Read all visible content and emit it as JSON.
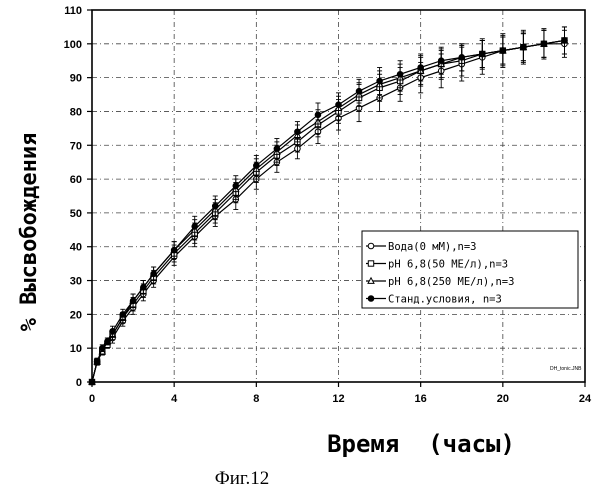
{
  "chart_data": {
    "type": "line",
    "title": "",
    "xlabel": "Время  (часы)",
    "ylabel": "% Высвобождения",
    "xlim": [
      0,
      24
    ],
    "ylim": [
      0,
      110
    ],
    "xticks": [
      0,
      4,
      8,
      12,
      16,
      20,
      24
    ],
    "yticks": [
      0,
      10,
      20,
      30,
      40,
      50,
      60,
      70,
      80,
      90,
      100,
      110
    ],
    "grid": true,
    "legend_position": "lower-right",
    "x": [
      0,
      0.25,
      0.5,
      0.75,
      1,
      1.5,
      2,
      2.5,
      3,
      4,
      5,
      6,
      7,
      8,
      9,
      10,
      11,
      12,
      13,
      14,
      15,
      16,
      17,
      18,
      19,
      20,
      21,
      22,
      23
    ],
    "series": [
      {
        "name": "Вода(0 мМ),n=3",
        "marker": "open-circle",
        "values": [
          0,
          6,
          9,
          11,
          13,
          18,
          22,
          26,
          30,
          37,
          43,
          49,
          54,
          60,
          65,
          69,
          74,
          78,
          81,
          84,
          87,
          90,
          92,
          94,
          96,
          98,
          99,
          100,
          100
        ],
        "error": [
          0,
          1,
          1,
          1,
          1.5,
          1.5,
          2,
          2,
          2,
          2.5,
          3,
          3,
          3,
          3,
          3,
          3,
          3.5,
          3.5,
          4,
          4,
          4,
          4.5,
          5,
          5,
          5,
          5,
          5,
          4.5,
          4
        ]
      },
      {
        "name": "pH 6,8(50 МЕ/л),n=3",
        "marker": "open-square",
        "values": [
          0,
          6,
          9,
          11,
          14,
          19,
          23,
          27,
          31,
          38,
          44,
          50,
          56,
          62,
          67,
          71,
          76,
          80,
          84,
          87,
          89,
          92,
          94,
          95,
          97,
          98,
          99,
          100,
          101
        ],
        "error": [
          0,
          1,
          1,
          1,
          1.5,
          1.5,
          2,
          2,
          2,
          2.5,
          3,
          3,
          3,
          3,
          3,
          3,
          3.5,
          3.5,
          4,
          4,
          4,
          4.5,
          4.5,
          4.5,
          4.5,
          4.5,
          4.5,
          4,
          4
        ]
      },
      {
        "name": "pH 6,8(250 МЕ/л),n=3",
        "marker": "open-triangle",
        "values": [
          0,
          6,
          9,
          12,
          14,
          19,
          24,
          28,
          32,
          39,
          45,
          51,
          57,
          63,
          68,
          73,
          77,
          81,
          85,
          88,
          90,
          92,
          94,
          96,
          97,
          98,
          99,
          100,
          101
        ],
        "error": [
          0,
          1,
          1,
          1,
          1.5,
          1.5,
          2,
          2,
          2,
          2.5,
          3,
          3,
          3,
          3,
          3,
          3,
          3.5,
          3.5,
          3.5,
          4,
          4,
          4,
          4,
          4,
          4,
          4,
          4,
          4,
          4
        ]
      },
      {
        "name": "Станд.условия, n=3",
        "marker": "filled-circle",
        "values": [
          0,
          6,
          10,
          12,
          15,
          20,
          24,
          28,
          32,
          39,
          46,
          52,
          58,
          64,
          69,
          74,
          79,
          82,
          86,
          89,
          91,
          93,
          95,
          96,
          97,
          98,
          99,
          100,
          101
        ],
        "error": [
          0,
          1,
          1,
          1,
          1.5,
          1.5,
          2,
          2,
          2,
          2.5,
          3,
          3,
          3,
          3,
          3,
          3,
          3.5,
          3.5,
          3.5,
          4,
          4,
          4,
          4,
          4,
          4,
          4,
          4,
          4,
          4
        ]
      }
    ]
  },
  "plot_note": "DH_tonic.JNB",
  "figure_caption": "Фиг.12",
  "colors": {
    "ink": "#000000",
    "background": "#ffffff"
  }
}
